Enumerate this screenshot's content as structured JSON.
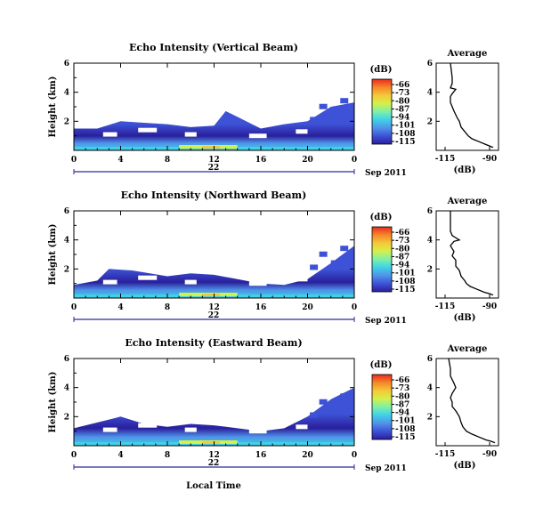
{
  "colorbar": {
    "unit_label": "(dB)",
    "ticks": [
      "-66",
      "-73",
      "-80",
      "-87",
      "-94",
      "-101",
      "-108",
      "-115"
    ],
    "colors": [
      "#2a1f9c",
      "#3d52d6",
      "#4f93e8",
      "#3fd1e8",
      "#7ef0a8",
      "#d4f04a",
      "#f5c838",
      "#f5872a",
      "#e82a1e"
    ]
  },
  "common": {
    "x_ticks": [
      "0",
      "4",
      "8",
      "12",
      "16",
      "20",
      "0"
    ],
    "date_day": "22",
    "date_month_year": "Sep 2011",
    "y_label": "Height (km)",
    "y_ticks": [
      "6",
      "4",
      "2"
    ],
    "x_axis_label": "Local Time",
    "profile_title": "Average",
    "profile_x_ticks": [
      "-115",
      "-90"
    ],
    "profile_y_ticks": [
      "6",
      "4",
      "2"
    ]
  },
  "chart_data": [
    {
      "type": "heatmap",
      "title": "Echo Intensity (Vertical Beam)",
      "x_range_hours": [
        0,
        24
      ],
      "ylim_km": [
        0,
        6
      ],
      "value_range_db": [
        -115,
        -66
      ],
      "echo_top_km": [
        [
          0,
          1.5
        ],
        [
          2,
          1.5
        ],
        [
          4,
          2.0
        ],
        [
          6,
          1.9
        ],
        [
          8,
          1.8
        ],
        [
          10,
          1.6
        ],
        [
          12,
          1.7
        ],
        [
          13,
          2.7
        ],
        [
          14,
          2.3
        ],
        [
          16,
          1.5
        ],
        [
          18,
          1.8
        ],
        [
          20,
          2.0
        ],
        [
          22,
          3.0
        ],
        [
          24,
          3.3
        ]
      ],
      "profile": {
        "title": "Average",
        "xlabel": "(dB)",
        "x_ticks": [
          -115,
          -90
        ],
        "y_ticks": [
          2,
          4,
          6
        ],
        "points": [
          [
            -112,
            6.0
          ],
          [
            -111,
            5.0
          ],
          [
            -111,
            4.6
          ],
          [
            -112,
            4.3
          ],
          [
            -109,
            4.2
          ],
          [
            -111,
            3.9
          ],
          [
            -112,
            3.7
          ],
          [
            -112,
            3.3
          ],
          [
            -111,
            3.0
          ],
          [
            -110,
            2.7
          ],
          [
            -108,
            2.2
          ],
          [
            -107,
            2.0
          ],
          [
            -106,
            1.6
          ],
          [
            -104,
            1.3
          ],
          [
            -102,
            1.0
          ],
          [
            -100,
            0.8
          ],
          [
            -96,
            0.6
          ],
          [
            -92,
            0.4
          ],
          [
            -90,
            0.3
          ],
          [
            -88,
            0.2
          ]
        ]
      }
    },
    {
      "type": "heatmap",
      "title": "Echo Intensity (Northward Beam)",
      "x_range_hours": [
        0,
        24
      ],
      "ylim_km": [
        0,
        6
      ],
      "value_range_db": [
        -115,
        -66
      ],
      "echo_top_km": [
        [
          0,
          0.9
        ],
        [
          2,
          1.2
        ],
        [
          3,
          2.0
        ],
        [
          5,
          1.9
        ],
        [
          8,
          1.5
        ],
        [
          10,
          1.7
        ],
        [
          12,
          1.6
        ],
        [
          14,
          1.3
        ],
        [
          16,
          1.0
        ],
        [
          18,
          0.9
        ],
        [
          20,
          1.3
        ],
        [
          22,
          2.4
        ],
        [
          24,
          3.6
        ]
      ],
      "profile": {
        "title": "Average",
        "xlabel": "(dB)",
        "x_ticks": [
          -115,
          -90
        ],
        "y_ticks": [
          2,
          4,
          6
        ],
        "points": [
          [
            -112,
            6.0
          ],
          [
            -112,
            5.1
          ],
          [
            -112,
            4.6
          ],
          [
            -111,
            4.3
          ],
          [
            -107,
            4.0
          ],
          [
            -110,
            3.9
          ],
          [
            -112,
            3.6
          ],
          [
            -110,
            3.2
          ],
          [
            -111,
            2.9
          ],
          [
            -109,
            2.6
          ],
          [
            -109,
            2.2
          ],
          [
            -107,
            1.9
          ],
          [
            -106,
            1.5
          ],
          [
            -104,
            1.2
          ],
          [
            -103,
            1.0
          ],
          [
            -101,
            0.8
          ],
          [
            -97,
            0.6
          ],
          [
            -93,
            0.4
          ],
          [
            -90,
            0.3
          ],
          [
            -88,
            0.2
          ]
        ]
      }
    },
    {
      "type": "heatmap",
      "title": "Echo Intensity (Eastward Beam)",
      "x_range_hours": [
        0,
        24
      ],
      "ylim_km": [
        0,
        6
      ],
      "value_range_db": [
        -115,
        -66
      ],
      "echo_top_km": [
        [
          0,
          1.2
        ],
        [
          2,
          1.6
        ],
        [
          4,
          2.0
        ],
        [
          6,
          1.5
        ],
        [
          8,
          1.3
        ],
        [
          10,
          1.5
        ],
        [
          12,
          1.4
        ],
        [
          14,
          1.2
        ],
        [
          16,
          1.0
        ],
        [
          18,
          1.2
        ],
        [
          20,
          2.0
        ],
        [
          22,
          3.2
        ],
        [
          24,
          4.0
        ]
      ],
      "profile": {
        "title": "Average",
        "xlabel": "(dB)",
        "x_ticks": [
          -115,
          -90
        ],
        "y_ticks": [
          2,
          4,
          6
        ],
        "points": [
          [
            -113,
            6.0
          ],
          [
            -112,
            5.3
          ],
          [
            -112,
            4.8
          ],
          [
            -110,
            4.3
          ],
          [
            -109,
            4.0
          ],
          [
            -111,
            3.6
          ],
          [
            -112,
            3.3
          ],
          [
            -111,
            3.0
          ],
          [
            -111,
            2.7
          ],
          [
            -109,
            2.4
          ],
          [
            -107,
            2.0
          ],
          [
            -106,
            1.6
          ],
          [
            -105,
            1.3
          ],
          [
            -103,
            1.0
          ],
          [
            -100,
            0.8
          ],
          [
            -96,
            0.6
          ],
          [
            -92,
            0.4
          ],
          [
            -89,
            0.3
          ],
          [
            -87,
            0.2
          ]
        ]
      }
    }
  ]
}
